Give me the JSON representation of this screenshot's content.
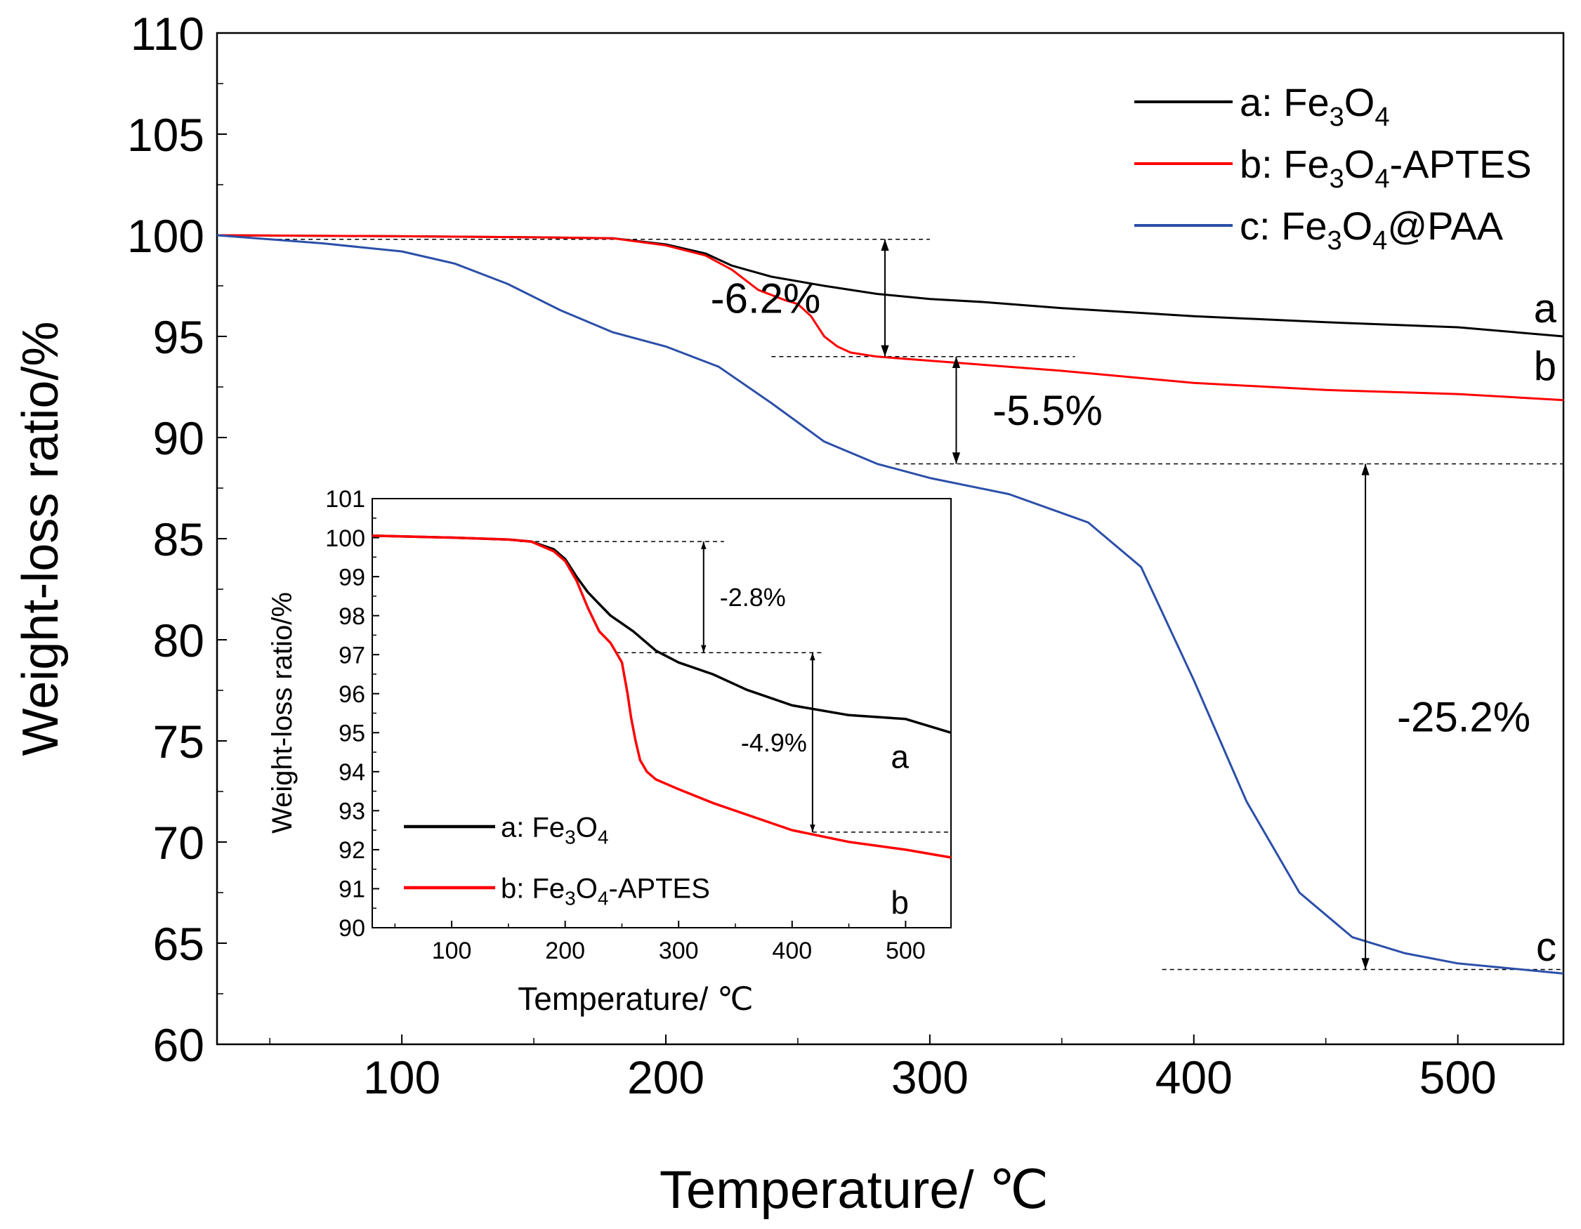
{
  "chart_data": [
    {
      "type": "line",
      "title": "",
      "xlabel": "Temperature/ ℃",
      "ylabel": "Weight-loss ratio/%",
      "xlim": [
        30,
        540
      ],
      "ylim": [
        60,
        110
      ],
      "xticks": [
        "100",
        "200",
        "300",
        "400",
        "500"
      ],
      "yticks": [
        "60",
        "65",
        "70",
        "75",
        "80",
        "85",
        "90",
        "95",
        "100",
        "105",
        "110"
      ],
      "legend_position": "top-right",
      "series": [
        {
          "name": "a: Fe3O4",
          "legend_prefix": "a:",
          "legend_formula": [
            "Fe",
            "3",
            "O",
            "4"
          ],
          "legend_suffix": "",
          "color": "#000000",
          "end_label": "a",
          "x": [
            30,
            100,
            150,
            180,
            200,
            215,
            225,
            240,
            260,
            280,
            300,
            320,
            350,
            400,
            450,
            500,
            540
          ],
          "y": [
            100,
            99.95,
            99.9,
            99.85,
            99.55,
            99.1,
            98.5,
            97.95,
            97.5,
            97.1,
            96.85,
            96.7,
            96.4,
            96.0,
            95.7,
            95.45,
            95.0
          ]
        },
        {
          "name": "b: Fe3O4-APTES",
          "legend_prefix": "b:",
          "legend_formula": [
            "Fe",
            "3",
            "O",
            "4"
          ],
          "legend_suffix": "-APTES",
          "color": "#ff0000",
          "end_label": "b",
          "x": [
            30,
            100,
            150,
            180,
            200,
            215,
            225,
            235,
            245,
            250,
            255,
            260,
            265,
            270,
            280,
            300,
            350,
            400,
            450,
            500,
            540
          ],
          "y": [
            100,
            99.95,
            99.9,
            99.85,
            99.5,
            99.0,
            98.3,
            97.3,
            96.8,
            96.6,
            96.0,
            95.0,
            94.5,
            94.2,
            94.0,
            93.8,
            93.3,
            92.7,
            92.35,
            92.15,
            91.85
          ]
        },
        {
          "name": "c: Fe3O4@PAA",
          "legend_prefix": "c:",
          "legend_formula": [
            "Fe",
            "3",
            "O",
            "4"
          ],
          "legend_suffix": "@PAA",
          "color": "#2b4fa8",
          "end_label": "c",
          "x": [
            30,
            70,
            100,
            120,
            140,
            160,
            180,
            200,
            220,
            240,
            260,
            280,
            300,
            330,
            360,
            380,
            400,
            420,
            440,
            460,
            480,
            500,
            540
          ],
          "y": [
            100,
            99.6,
            99.2,
            98.6,
            97.6,
            96.3,
            95.2,
            94.5,
            93.5,
            91.7,
            89.8,
            88.7,
            88.0,
            87.2,
            85.8,
            83.6,
            78.0,
            72.0,
            67.5,
            65.3,
            64.5,
            64.0,
            63.5
          ]
        }
      ],
      "annotations": [
        {
          "label": "-6.2%",
          "x": 283,
          "y1": 99.8,
          "y2": 94.0
        },
        {
          "label": "-5.5%",
          "x": 310,
          "y1": 94.0,
          "y2": 88.7
        },
        {
          "label": "-25.2%",
          "x": 465,
          "y1": 88.7,
          "y2": 63.7
        }
      ],
      "reference_lines": [
        {
          "y": 99.8,
          "x1": 50,
          "x2": 300
        },
        {
          "y": 94.0,
          "x1": 240,
          "x2": 355
        },
        {
          "y": 88.7,
          "x1": 287,
          "x2": 540
        },
        {
          "y": 63.7,
          "x1": 388,
          "x2": 540
        }
      ]
    },
    {
      "type": "line",
      "title": "",
      "xlabel": "Temperature/ ℃",
      "ylabel": "Weight-loss ratio/%",
      "xlim": [
        30,
        540
      ],
      "ylim": [
        90,
        101
      ],
      "xticks": [
        "100",
        "200",
        "300",
        "400",
        "500"
      ],
      "yticks": [
        "90",
        "91",
        "92",
        "93",
        "94",
        "95",
        "96",
        "97",
        "98",
        "99",
        "100",
        "101"
      ],
      "legend_position": "bottom-left",
      "series": [
        {
          "name": "a:Fe3O4",
          "legend_prefix": "a:",
          "legend_formula": [
            "Fe",
            "3",
            "O",
            "4"
          ],
          "legend_suffix": "",
          "color": "#000000",
          "end_label": "a",
          "x": [
            30,
            100,
            150,
            170,
            190,
            200,
            210,
            220,
            230,
            240,
            260,
            280,
            300,
            330,
            360,
            400,
            450,
            500,
            540
          ],
          "y": [
            100.05,
            100.0,
            99.95,
            99.9,
            99.7,
            99.45,
            99.0,
            98.6,
            98.3,
            98.0,
            97.6,
            97.1,
            96.8,
            96.5,
            96.1,
            95.7,
            95.45,
            95.35,
            95.0
          ]
        },
        {
          "name": "b:Fe3O4-APTES",
          "legend_prefix": "b:",
          "legend_formula": [
            "Fe",
            "3",
            "O",
            "4"
          ],
          "legend_suffix": "-APTES",
          "color": "#ff0000",
          "end_label": "b",
          "x": [
            30,
            100,
            150,
            170,
            190,
            200,
            210,
            220,
            230,
            240,
            250,
            255,
            258,
            262,
            266,
            272,
            280,
            300,
            330,
            370,
            400,
            450,
            500,
            540
          ],
          "y": [
            100.05,
            100.0,
            99.95,
            99.9,
            99.65,
            99.4,
            98.9,
            98.2,
            97.6,
            97.3,
            96.8,
            96.0,
            95.4,
            94.8,
            94.3,
            94.0,
            93.8,
            93.55,
            93.2,
            92.8,
            92.5,
            92.2,
            92.0,
            91.8
          ]
        }
      ],
      "annotations": [
        {
          "label": "-2.8%",
          "x": 322,
          "y1": 99.9,
          "y2": 97.05
        },
        {
          "label": "-4.9%",
          "x": 418,
          "y1": 97.05,
          "y2": 92.45
        }
      ],
      "reference_lines": [
        {
          "y": 99.9,
          "x1": 160,
          "x2": 340
        },
        {
          "y": 97.05,
          "x1": 245,
          "x2": 428
        },
        {
          "y": 92.45,
          "x1": 418,
          "x2": 540
        }
      ]
    }
  ]
}
